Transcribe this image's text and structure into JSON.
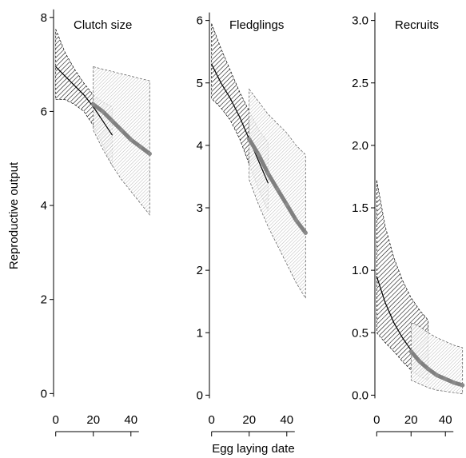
{
  "figure": {
    "ylabel": "Reproductive output",
    "xlabel": "Egg laying date"
  },
  "colors": {
    "early_line": "#000000",
    "late_line": "#808080",
    "early_band_hatch": "#000000",
    "late_band_hatch": "#9a9a9a"
  },
  "chart_data": [
    {
      "type": "line",
      "title": "Clutch size",
      "xlabel": "",
      "ylabel": "Reproductive output",
      "xlim": [
        -2,
        52
      ],
      "ylim": [
        -0.3,
        8.2
      ],
      "xticks": [
        0,
        20,
        40
      ],
      "yticks": [
        0,
        2,
        4,
        6,
        8
      ],
      "ytick_labels": [
        "0",
        "2",
        "4",
        "6",
        "8"
      ],
      "grid": false,
      "series": [
        {
          "style": "early",
          "x": [
            0,
            5,
            10,
            15,
            20,
            25,
            30
          ],
          "y": [
            6.95,
            6.75,
            6.55,
            6.35,
            6.1,
            5.8,
            5.5
          ],
          "upper": [
            7.75,
            7.25,
            6.9,
            6.6,
            6.35,
            6.2,
            6.1
          ],
          "lower": [
            6.25,
            6.25,
            6.15,
            6.0,
            5.7,
            5.3,
            4.85
          ]
        },
        {
          "style": "late",
          "x": [
            20,
            25,
            30,
            35,
            40,
            45,
            50
          ],
          "y": [
            6.15,
            6.0,
            5.8,
            5.6,
            5.4,
            5.25,
            5.1
          ],
          "upper": [
            6.95,
            6.9,
            6.85,
            6.8,
            6.75,
            6.7,
            6.65
          ],
          "lower": [
            5.6,
            5.2,
            4.85,
            4.55,
            4.3,
            4.05,
            3.8
          ]
        }
      ]
    },
    {
      "type": "line",
      "title": "Fledglings",
      "xlabel": "Egg laying date",
      "ylabel": "",
      "xlim": [
        -2,
        52
      ],
      "ylim": [
        -0.2,
        6.2
      ],
      "xticks": [
        0,
        20,
        40
      ],
      "yticks": [
        0,
        1,
        2,
        3,
        4,
        5,
        6
      ],
      "ytick_labels": [
        "0",
        "1",
        "2",
        "3",
        "4",
        "5",
        "6"
      ],
      "grid": false,
      "series": [
        {
          "style": "early",
          "x": [
            0,
            5,
            10,
            15,
            20,
            25,
            30
          ],
          "y": [
            5.3,
            5.0,
            4.75,
            4.45,
            4.1,
            3.75,
            3.4
          ],
          "upper": [
            5.95,
            5.55,
            5.2,
            4.85,
            4.55,
            4.25,
            4.05
          ],
          "lower": [
            4.75,
            4.6,
            4.4,
            4.1,
            3.7,
            3.3,
            2.95
          ]
        },
        {
          "style": "late",
          "x": [
            20,
            25,
            30,
            35,
            40,
            45,
            50
          ],
          "y": [
            4.1,
            3.85,
            3.55,
            3.3,
            3.05,
            2.8,
            2.6
          ],
          "upper": [
            4.9,
            4.7,
            4.5,
            4.35,
            4.2,
            4.0,
            3.85
          ],
          "lower": [
            3.45,
            3.05,
            2.7,
            2.4,
            2.1,
            1.8,
            1.55
          ]
        }
      ]
    },
    {
      "type": "line",
      "title": "Recruits",
      "xlabel": "",
      "ylabel": "",
      "xlim": [
        -2,
        52
      ],
      "ylim": [
        -0.1,
        3.1
      ],
      "xticks": [
        0,
        20,
        40
      ],
      "yticks": [
        0,
        0.5,
        1,
        1.5,
        2,
        2.5,
        3
      ],
      "ytick_labels": [
        "0.0",
        "0.5",
        "1.0",
        "1.5",
        "2.0",
        "2.5",
        "3.0"
      ],
      "grid": false,
      "series": [
        {
          "style": "early",
          "x": [
            0,
            5,
            10,
            15,
            20,
            25,
            30
          ],
          "y": [
            0.95,
            0.74,
            0.58,
            0.46,
            0.36,
            0.28,
            0.21
          ],
          "upper": [
            1.72,
            1.35,
            1.1,
            0.92,
            0.78,
            0.68,
            0.6
          ],
          "lower": [
            0.5,
            0.42,
            0.35,
            0.27,
            0.2,
            0.15,
            0.12
          ]
        },
        {
          "style": "late",
          "x": [
            20,
            25,
            30,
            35,
            40,
            45,
            50
          ],
          "y": [
            0.35,
            0.27,
            0.21,
            0.16,
            0.13,
            0.1,
            0.08
          ],
          "upper": [
            0.58,
            0.55,
            0.5,
            0.46,
            0.43,
            0.4,
            0.38
          ],
          "lower": [
            0.12,
            0.09,
            0.06,
            0.04,
            0.03,
            0.02,
            0.01
          ]
        }
      ]
    }
  ]
}
